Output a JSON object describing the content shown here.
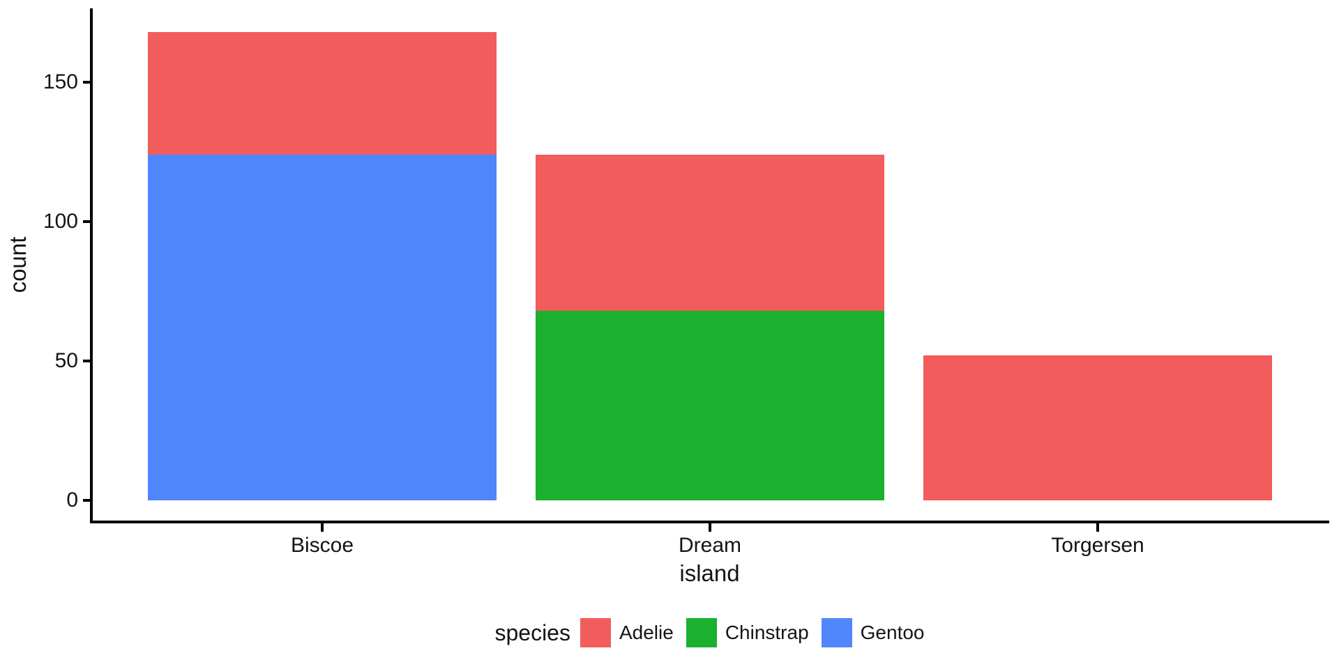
{
  "chart_data": {
    "type": "bar",
    "stacked": true,
    "title": "",
    "xlabel": "island",
    "ylabel": "count",
    "legend_title": "species",
    "legend_position": "bottom",
    "grid": false,
    "categories": [
      "Biscoe",
      "Dream",
      "Torgersen"
    ],
    "series": [
      {
        "name": "Adelie",
        "color": "#F25C5C",
        "values": [
          44,
          56,
          52
        ]
      },
      {
        "name": "Chinstrap",
        "color": "#1BB02E",
        "values": [
          0,
          68,
          0
        ]
      },
      {
        "name": "Gentoo",
        "color": "#4F86FC",
        "values": [
          124,
          0,
          0
        ]
      }
    ],
    "stack_order_note": "first series renders on top of stack",
    "totals": [
      168,
      124,
      52
    ],
    "y_ticks": [
      0,
      50,
      100,
      150
    ],
    "ylim": [
      0,
      176
    ],
    "axis_color": "#000000",
    "text_color": "#141414",
    "background": "#FFFFFF"
  }
}
